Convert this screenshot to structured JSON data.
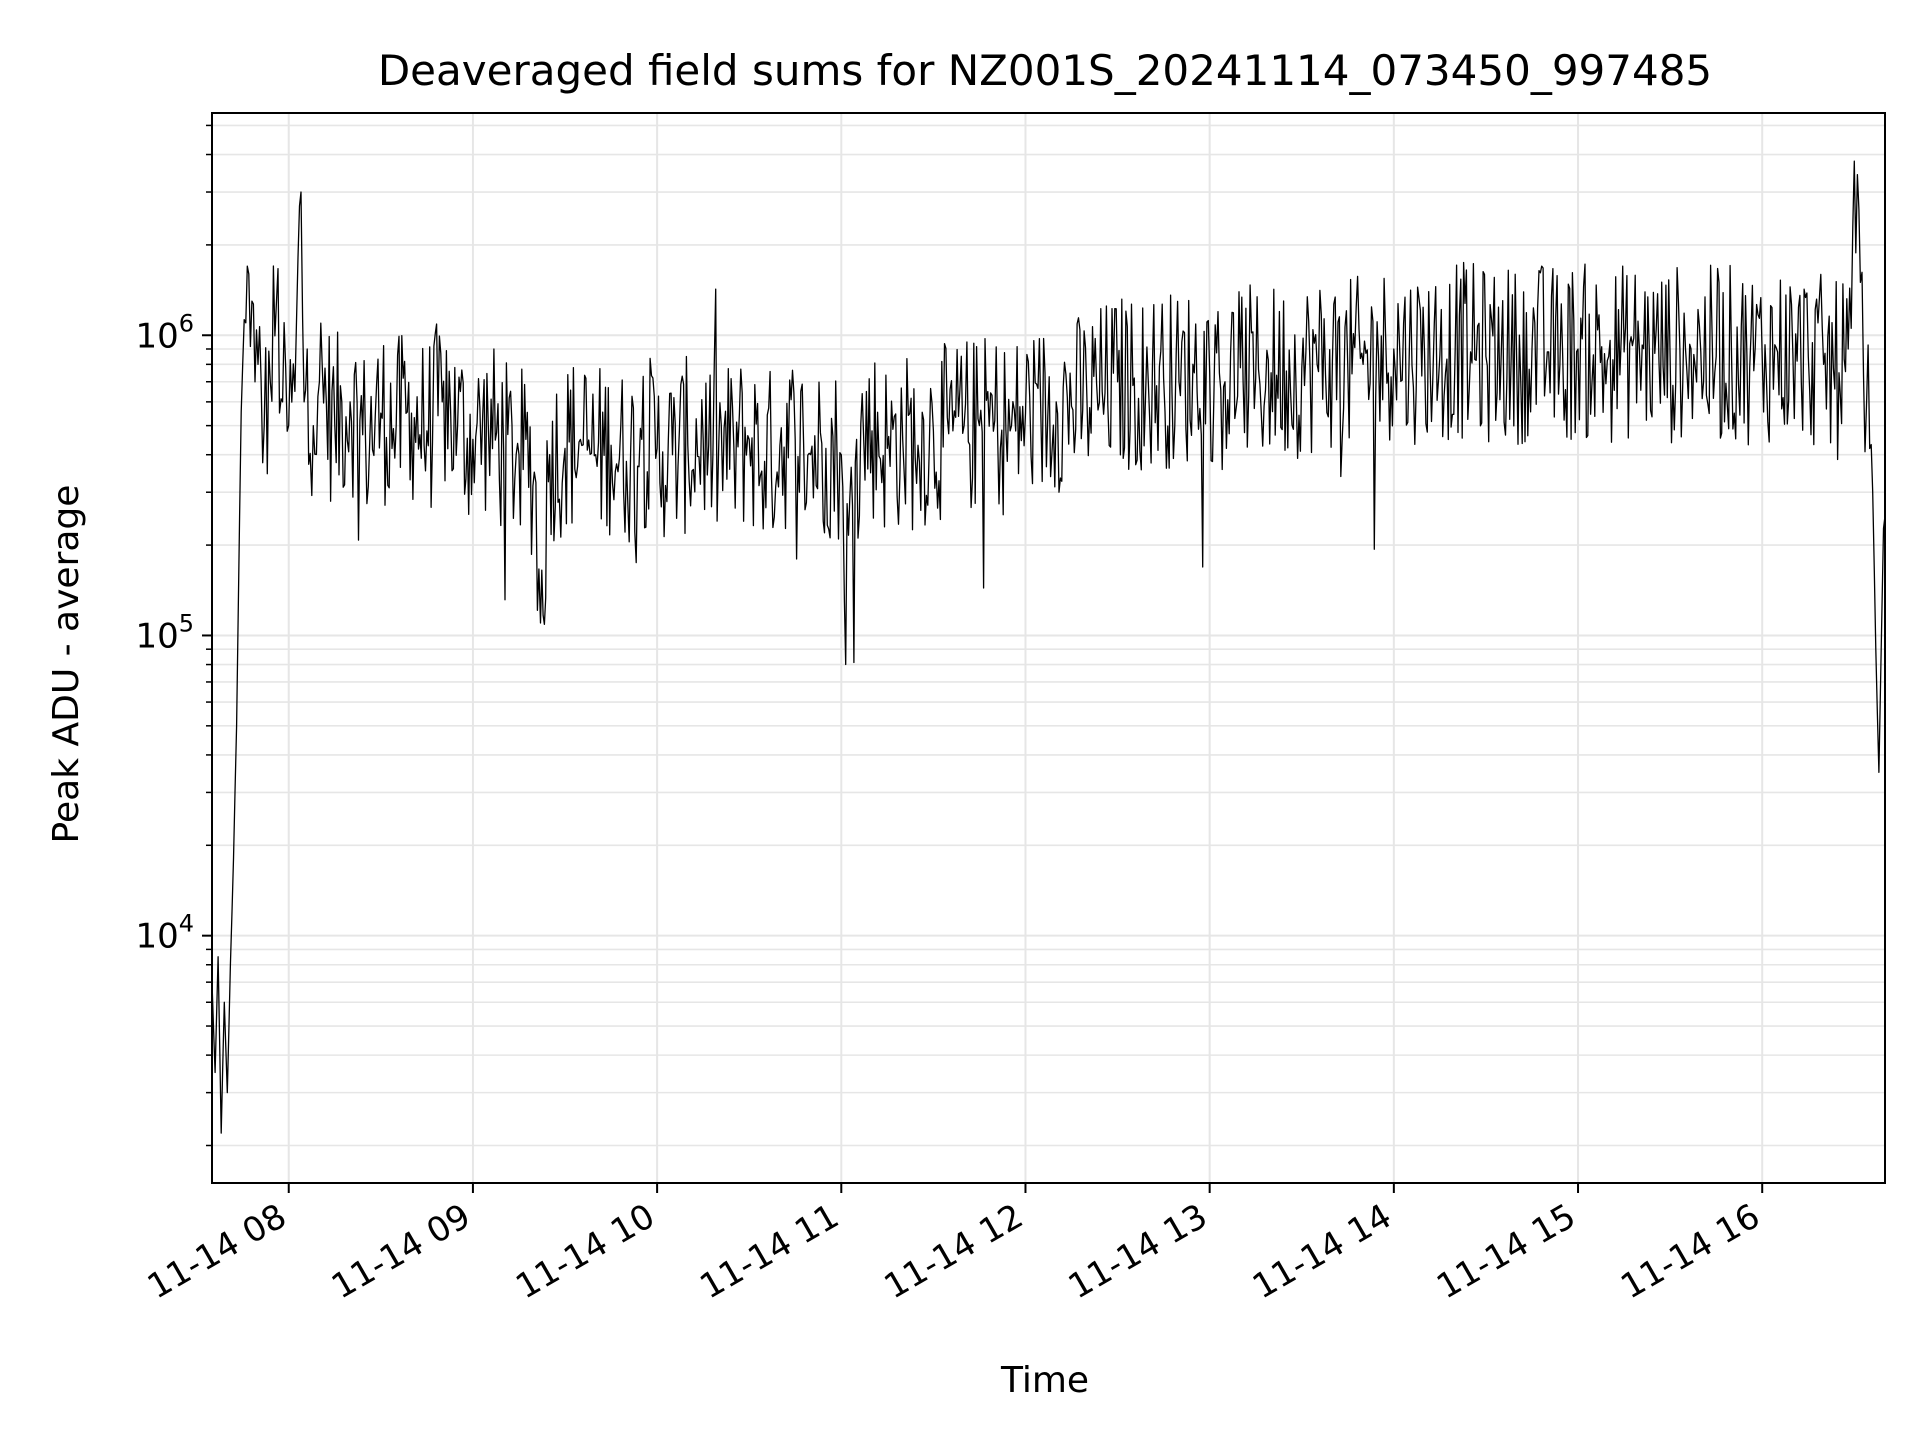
{
  "chart_data": {
    "type": "line",
    "title": "Deaveraged field sums for NZ001S_20241114_073450_997485",
    "xlabel": "Time",
    "ylabel": "Peak ADU - average",
    "y_scale": "log",
    "ylim": [
      1500,
      5500000
    ],
    "xlim": [
      "2024-11-14 07:35",
      "2024-11-14 16:40"
    ],
    "x_ticks": [
      {
        "t": "2024-11-14 08:00",
        "label": "11-14 08"
      },
      {
        "t": "2024-11-14 09:00",
        "label": "11-14 09"
      },
      {
        "t": "2024-11-14 10:00",
        "label": "11-14 10"
      },
      {
        "t": "2024-11-14 11:00",
        "label": "11-14 11"
      },
      {
        "t": "2024-11-14 12:00",
        "label": "11-14 12"
      },
      {
        "t": "2024-11-14 13:00",
        "label": "11-14 13"
      },
      {
        "t": "2024-11-14 14:00",
        "label": "11-14 14"
      },
      {
        "t": "2024-11-14 15:00",
        "label": "11-14 15"
      },
      {
        "t": "2024-11-14 16:00",
        "label": "11-14 16"
      }
    ],
    "y_ticks": [
      {
        "value": 10000,
        "base": "10",
        "exp": "4"
      },
      {
        "value": 100000,
        "base": "10",
        "exp": "5"
      },
      {
        "value": 1000000,
        "base": "10",
        "exp": "6"
      }
    ],
    "grid": true,
    "line_color": "#000000",
    "grid_color": "#e6e6e6",
    "series": [
      {
        "x": [
          "2024-11-14 07:35",
          "2024-11-14 07:36",
          "2024-11-14 07:37",
          "2024-11-14 07:38",
          "2024-11-14 07:39",
          "2024-11-14 07:40",
          "2024-11-14 07:41",
          "2024-11-14 07:42",
          "2024-11-14 07:43",
          "2024-11-14 07:44",
          "2024-11-14 07:45",
          "2024-11-14 07:46",
          "2024-11-14 07:47",
          "2024-11-14 07:48",
          "2024-11-14 07:49",
          "2024-11-14 07:50",
          "2024-11-14 07:52",
          "2024-11-14 07:54",
          "2024-11-14 07:56",
          "2024-11-14 07:58",
          "2024-11-14 08:00",
          "2024-11-14 08:02",
          "2024-11-14 08:04",
          "2024-11-14 08:05",
          "2024-11-14 08:06",
          "2024-11-14 08:08",
          "2024-11-14 08:10",
          "2024-11-14 08:15",
          "2024-11-14 08:20",
          "2024-11-14 08:25",
          "2024-11-14 08:30",
          "2024-11-14 08:35",
          "2024-11-14 08:40",
          "2024-11-14 08:45",
          "2024-11-14 08:50",
          "2024-11-14 08:55",
          "2024-11-14 09:00",
          "2024-11-14 09:05",
          "2024-11-14 09:10",
          "2024-11-14 09:15",
          "2024-11-14 09:20",
          "2024-11-14 09:22",
          "2024-11-14 09:25",
          "2024-11-14 09:30",
          "2024-11-14 09:35",
          "2024-11-14 09:40",
          "2024-11-14 09:45",
          "2024-11-14 09:50",
          "2024-11-14 09:55",
          "2024-11-14 10:00",
          "2024-11-14 10:05",
          "2024-11-14 10:10",
          "2024-11-14 10:15",
          "2024-11-14 10:20",
          "2024-11-14 10:25",
          "2024-11-14 10:30",
          "2024-11-14 10:35",
          "2024-11-14 10:40",
          "2024-11-14 10:45",
          "2024-11-14 10:50",
          "2024-11-14 10:55",
          "2024-11-14 11:00",
          "2024-11-14 11:01",
          "2024-11-14 11:05",
          "2024-11-14 11:10",
          "2024-11-14 11:15",
          "2024-11-14 11:20",
          "2024-11-14 11:25",
          "2024-11-14 11:30",
          "2024-11-14 11:35",
          "2024-11-14 11:40",
          "2024-11-14 11:45",
          "2024-11-14 11:50",
          "2024-11-14 11:55",
          "2024-11-14 12:00",
          "2024-11-14 12:05",
          "2024-11-14 12:10",
          "2024-11-14 12:15",
          "2024-11-14 12:20",
          "2024-11-14 12:25",
          "2024-11-14 12:30",
          "2024-11-14 12:35",
          "2024-11-14 12:40",
          "2024-11-14 12:45",
          "2024-11-14 12:50",
          "2024-11-14 12:55",
          "2024-11-14 13:00",
          "2024-11-14 13:05",
          "2024-11-14 13:10",
          "2024-11-14 13:15",
          "2024-11-14 13:20",
          "2024-11-14 13:25",
          "2024-11-14 13:30",
          "2024-11-14 13:35",
          "2024-11-14 13:40",
          "2024-11-14 13:45",
          "2024-11-14 13:50",
          "2024-11-14 13:55",
          "2024-11-14 14:00",
          "2024-11-14 14:05",
          "2024-11-14 14:10",
          "2024-11-14 14:15",
          "2024-11-14 14:20",
          "2024-11-14 14:25",
          "2024-11-14 14:30",
          "2024-11-14 14:35",
          "2024-11-14 14:40",
          "2024-11-14 14:45",
          "2024-11-14 14:50",
          "2024-11-14 14:55",
          "2024-11-14 15:00",
          "2024-11-14 15:05",
          "2024-11-14 15:10",
          "2024-11-14 15:15",
          "2024-11-14 15:20",
          "2024-11-14 15:25",
          "2024-11-14 15:30",
          "2024-11-14 15:35",
          "2024-11-14 15:40",
          "2024-11-14 15:45",
          "2024-11-14 15:50",
          "2024-11-14 15:55",
          "2024-11-14 16:00",
          "2024-11-14 16:05",
          "2024-11-14 16:10",
          "2024-11-14 16:15",
          "2024-11-14 16:20",
          "2024-11-14 16:25",
          "2024-11-14 16:28",
          "2024-11-14 16:30",
          "2024-11-14 16:32",
          "2024-11-14 16:34",
          "2024-11-14 16:36",
          "2024-11-14 16:37",
          "2024-11-14 16:38",
          "2024-11-14 16:39",
          "2024-11-14 16:40"
        ],
        "y": [
          7000,
          3500,
          8500,
          2200,
          6000,
          3000,
          8000,
          18000,
          50000,
          250000,
          800000,
          1100000,
          1600000,
          1300000,
          700000,
          800000,
          500000,
          700000,
          1300000,
          600000,
          500000,
          650000,
          3000000,
          600000,
          900000,
          500000,
          700000,
          500000,
          600000,
          450000,
          550000,
          500000,
          550000,
          480000,
          600000,
          500000,
          450000,
          500000,
          420000,
          400000,
          350000,
          110000,
          400000,
          420000,
          450000,
          400000,
          430000,
          380000,
          450000,
          420000,
          400000,
          430000,
          450000,
          400000,
          420000,
          450000,
          380000,
          430000,
          450000,
          400000,
          420000,
          400000,
          130000,
          450000,
          480000,
          420000,
          450000,
          430000,
          480000,
          470000,
          500000,
          500000,
          520000,
          480000,
          550000,
          550000,
          600000,
          580000,
          620000,
          650000,
          700000,
          680000,
          700000,
          720000,
          700000,
          750000,
          750000,
          700000,
          780000,
          720000,
          750000,
          760000,
          780000,
          800000,
          820000,
          780000,
          800000,
          850000,
          900000,
          850000,
          880000,
          860000,
          900000,
          880000,
          850000,
          880000,
          850000,
          900000,
          880000,
          850000,
          900000,
          860000,
          850000,
          880000,
          900000,
          870000,
          850000,
          900000,
          880000,
          850000,
          870000,
          860000,
          850000,
          880000,
          860000,
          850000,
          800000,
          750000,
          900000,
          3800000,
          1500000,
          600000,
          300000,
          90000,
          35000,
          120000,
          250000
        ]
      }
    ]
  }
}
